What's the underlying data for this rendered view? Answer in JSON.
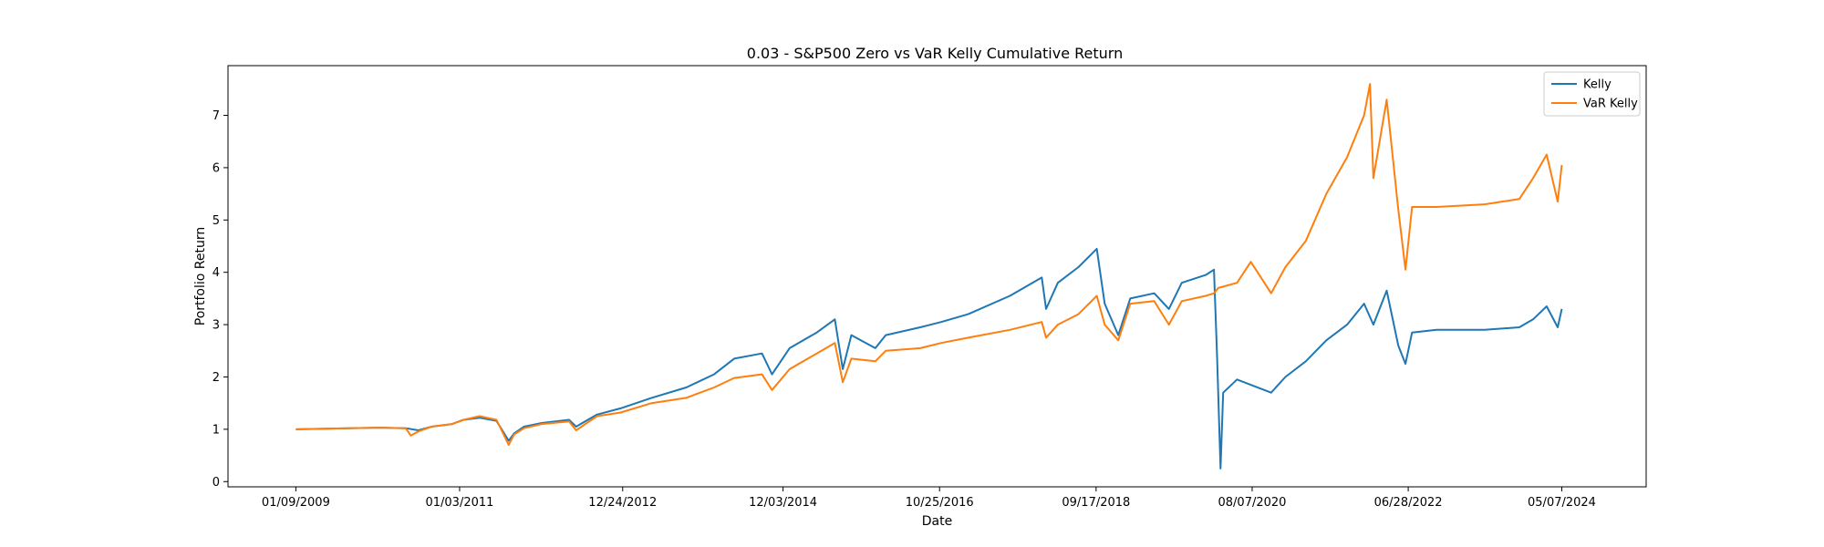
{
  "chart_data": {
    "type": "line",
    "title": "0.03 - S&P500 Zero vs VaR Kelly Cumulative Return",
    "xlabel": "Date",
    "ylabel": "Portfolio Return",
    "x_tick_labels": [
      "01/09/2009",
      "01/03/2011",
      "12/24/2012",
      "12/03/2014",
      "10/25/2016",
      "09/17/2018",
      "08/07/2020",
      "06/28/2022",
      "05/07/2024"
    ],
    "y_ticks": [
      0,
      1,
      2,
      3,
      4,
      5,
      6,
      7
    ],
    "xlim": [
      "2008-03-15",
      "2025-05-15"
    ],
    "ylim": [
      -0.1,
      7.95
    ],
    "grid": false,
    "legend_position": "top-right",
    "series": [
      {
        "name": "Kelly",
        "color": "#1f77b4",
        "points": [
          [
            "2009-01-09",
            1.0
          ],
          [
            "2010-01-15",
            1.03
          ],
          [
            "2010-05-10",
            1.02
          ],
          [
            "2010-07-05",
            0.98
          ],
          [
            "2010-09-01",
            1.05
          ],
          [
            "2010-12-01",
            1.1
          ],
          [
            "2011-01-20",
            1.18
          ],
          [
            "2011-04-01",
            1.22
          ],
          [
            "2011-06-15",
            1.16
          ],
          [
            "2011-08-08",
            0.78
          ],
          [
            "2011-09-01",
            0.92
          ],
          [
            "2011-10-15",
            1.05
          ],
          [
            "2012-01-01",
            1.12
          ],
          [
            "2012-05-01",
            1.18
          ],
          [
            "2012-06-01",
            1.05
          ],
          [
            "2012-09-01",
            1.28
          ],
          [
            "2012-12-15",
            1.4
          ],
          [
            "2013-05-01",
            1.6
          ],
          [
            "2013-10-01",
            1.8
          ],
          [
            "2014-02-01",
            2.05
          ],
          [
            "2014-05-01",
            2.35
          ],
          [
            "2014-09-01",
            2.45
          ],
          [
            "2014-10-15",
            2.05
          ],
          [
            "2015-01-01",
            2.55
          ],
          [
            "2015-05-01",
            2.85
          ],
          [
            "2015-07-20",
            3.1
          ],
          [
            "2015-08-24",
            2.15
          ],
          [
            "2015-10-01",
            2.8
          ],
          [
            "2016-01-15",
            2.55
          ],
          [
            "2016-03-01",
            2.8
          ],
          [
            "2016-08-01",
            2.95
          ],
          [
            "2016-11-01",
            3.05
          ],
          [
            "2017-03-01",
            3.2
          ],
          [
            "2017-09-01",
            3.55
          ],
          [
            "2018-01-20",
            3.9
          ],
          [
            "2018-02-08",
            3.3
          ],
          [
            "2018-04-01",
            3.8
          ],
          [
            "2018-07-01",
            4.1
          ],
          [
            "2018-09-20",
            4.45
          ],
          [
            "2018-10-25",
            3.4
          ],
          [
            "2018-12-24",
            2.8
          ],
          [
            "2019-02-15",
            3.5
          ],
          [
            "2019-06-01",
            3.6
          ],
          [
            "2019-08-05",
            3.3
          ],
          [
            "2019-10-01",
            3.8
          ],
          [
            "2020-01-15",
            3.95
          ],
          [
            "2020-02-20",
            4.05
          ],
          [
            "2020-03-05",
            2.4
          ],
          [
            "2020-03-20",
            0.25
          ],
          [
            "2020-04-01",
            1.7
          ],
          [
            "2020-06-01",
            1.95
          ],
          [
            "2020-10-30",
            1.7
          ],
          [
            "2021-01-01",
            2.0
          ],
          [
            "2021-04-01",
            2.3
          ],
          [
            "2021-07-01",
            2.7
          ],
          [
            "2021-10-01",
            3.0
          ],
          [
            "2021-12-15",
            3.4
          ],
          [
            "2022-01-25",
            3.0
          ],
          [
            "2022-03-25",
            3.65
          ],
          [
            "2022-05-15",
            2.6
          ],
          [
            "2022-06-16",
            2.25
          ],
          [
            "2022-07-15",
            2.85
          ],
          [
            "2022-11-01",
            2.9
          ],
          [
            "2023-06-01",
            2.9
          ],
          [
            "2023-11-01",
            2.95
          ],
          [
            "2024-01-01",
            3.1
          ],
          [
            "2024-03-01",
            3.35
          ],
          [
            "2024-04-19",
            2.95
          ],
          [
            "2024-05-07",
            3.3
          ]
        ]
      },
      {
        "name": "VaR Kelly",
        "color": "#ff7f0e",
        "points": [
          [
            "2009-01-09",
            1.0
          ],
          [
            "2010-01-15",
            1.03
          ],
          [
            "2010-05-10",
            1.02
          ],
          [
            "2010-06-01",
            0.88
          ],
          [
            "2010-07-05",
            0.96
          ],
          [
            "2010-09-01",
            1.05
          ],
          [
            "2010-12-01",
            1.1
          ],
          [
            "2011-01-20",
            1.18
          ],
          [
            "2011-04-01",
            1.25
          ],
          [
            "2011-06-15",
            1.18
          ],
          [
            "2011-08-08",
            0.7
          ],
          [
            "2011-09-01",
            0.9
          ],
          [
            "2011-10-15",
            1.02
          ],
          [
            "2012-01-01",
            1.1
          ],
          [
            "2012-05-01",
            1.15
          ],
          [
            "2012-06-01",
            0.98
          ],
          [
            "2012-09-01",
            1.25
          ],
          [
            "2012-12-15",
            1.32
          ],
          [
            "2013-05-01",
            1.5
          ],
          [
            "2013-10-01",
            1.6
          ],
          [
            "2014-02-01",
            1.8
          ],
          [
            "2014-05-01",
            1.98
          ],
          [
            "2014-09-01",
            2.05
          ],
          [
            "2014-10-15",
            1.75
          ],
          [
            "2015-01-01",
            2.15
          ],
          [
            "2015-05-01",
            2.45
          ],
          [
            "2015-07-20",
            2.65
          ],
          [
            "2015-08-24",
            1.9
          ],
          [
            "2015-10-01",
            2.35
          ],
          [
            "2016-01-15",
            2.3
          ],
          [
            "2016-03-01",
            2.5
          ],
          [
            "2016-08-01",
            2.55
          ],
          [
            "2016-11-01",
            2.65
          ],
          [
            "2017-03-01",
            2.75
          ],
          [
            "2017-09-01",
            2.9
          ],
          [
            "2018-01-20",
            3.05
          ],
          [
            "2018-02-08",
            2.75
          ],
          [
            "2018-04-01",
            3.0
          ],
          [
            "2018-07-01",
            3.2
          ],
          [
            "2018-09-20",
            3.55
          ],
          [
            "2018-10-25",
            3.0
          ],
          [
            "2018-12-24",
            2.7
          ],
          [
            "2019-02-15",
            3.4
          ],
          [
            "2019-06-01",
            3.45
          ],
          [
            "2019-08-05",
            3.0
          ],
          [
            "2019-10-01",
            3.45
          ],
          [
            "2020-01-15",
            3.55
          ],
          [
            "2020-02-20",
            3.6
          ],
          [
            "2020-03-10",
            3.7
          ],
          [
            "2020-06-01",
            3.8
          ],
          [
            "2020-08-01",
            4.2
          ],
          [
            "2020-10-30",
            3.6
          ],
          [
            "2021-01-01",
            4.1
          ],
          [
            "2021-04-01",
            4.6
          ],
          [
            "2021-07-01",
            5.5
          ],
          [
            "2021-10-01",
            6.2
          ],
          [
            "2021-12-15",
            7.0
          ],
          [
            "2022-01-10",
            7.6
          ],
          [
            "2022-01-25",
            5.8
          ],
          [
            "2022-03-25",
            7.3
          ],
          [
            "2022-05-15",
            5.2
          ],
          [
            "2022-06-16",
            4.05
          ],
          [
            "2022-07-15",
            5.25
          ],
          [
            "2022-11-01",
            5.25
          ],
          [
            "2023-06-01",
            5.3
          ],
          [
            "2023-11-01",
            5.4
          ],
          [
            "2024-01-01",
            5.8
          ],
          [
            "2024-03-01",
            6.25
          ],
          [
            "2024-04-19",
            5.35
          ],
          [
            "2024-05-07",
            6.05
          ]
        ]
      }
    ]
  }
}
